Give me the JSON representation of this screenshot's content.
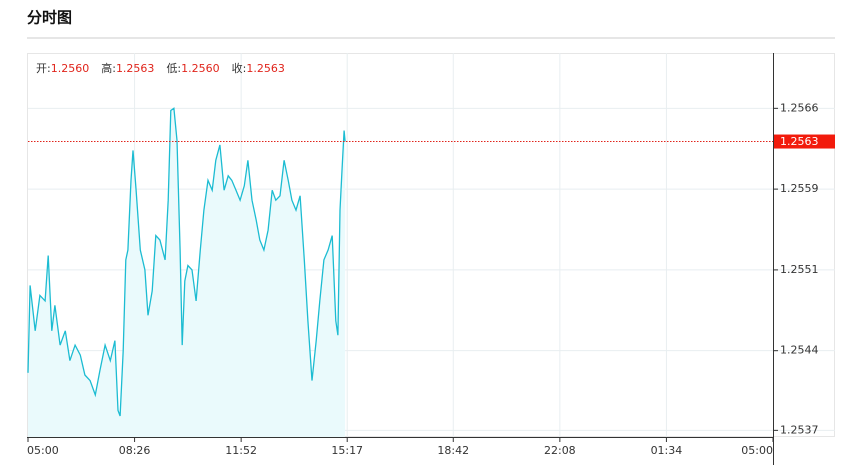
{
  "header": {
    "title": "分时图"
  },
  "chart_data": {
    "type": "line",
    "info": [
      {
        "label": "开:",
        "value": "1.2560"
      },
      {
        "label": "高:",
        "value": "1.2563"
      },
      {
        "label": "低:",
        "value": "1.2560"
      },
      {
        "label": "收:",
        "value": "1.2563"
      }
    ],
    "last_price": 1.2563,
    "xlim": [
      0,
      1440
    ],
    "xticks": [
      {
        "value": 0,
        "label": "05:00"
      },
      {
        "value": 206,
        "label": "08:26"
      },
      {
        "value": 412,
        "label": "11:52"
      },
      {
        "value": 617,
        "label": "15:17"
      },
      {
        "value": 822,
        "label": "18:42"
      },
      {
        "value": 1028,
        "label": "22:08"
      },
      {
        "value": 1234,
        "label": "01:34"
      },
      {
        "value": 1440,
        "label": "05:00"
      }
    ],
    "ylim": [
      1.25363,
      1.2571
    ],
    "yticks": [
      {
        "value": 1.25369,
        "label": "1.2537"
      },
      {
        "value": 1.25441,
        "label": "1.2544"
      },
      {
        "value": 1.25514,
        "label": "1.2551"
      },
      {
        "value": 1.25587,
        "label": "1.2559"
      },
      {
        "value": 1.2566,
        "label": "1.2566"
      }
    ],
    "grid": true,
    "color": "#1cbcd2",
    "x": [
      0,
      4,
      14,
      23,
      33,
      39,
      46,
      52,
      62,
      72,
      81,
      91,
      101,
      110,
      120,
      130,
      139,
      149,
      159,
      168,
      174,
      178,
      184,
      189,
      193,
      199,
      203,
      209,
      217,
      226,
      232,
      240,
      247,
      255,
      265,
      271,
      276,
      282,
      288,
      294,
      298,
      303,
      309,
      317,
      325,
      333,
      340,
      348,
      356,
      363,
      371,
      379,
      387,
      394,
      402,
      410,
      418,
      425,
      433,
      441,
      448,
      456,
      464,
      472,
      479,
      487,
      495,
      503,
      510,
      518,
      526,
      534,
      541,
      549,
      557,
      564,
      572,
      580,
      588,
      595,
      599,
      603,
      607,
      611,
      613
    ],
    "values": [
      1.25421,
      1.255,
      1.25459,
      1.25491,
      1.25486,
      1.25527,
      1.25459,
      1.25482,
      1.25446,
      1.25459,
      1.25432,
      1.25446,
      1.25437,
      1.25419,
      1.25414,
      1.25401,
      1.25423,
      1.25446,
      1.25432,
      1.2545,
      1.25387,
      1.25382,
      1.25441,
      1.25523,
      1.25532,
      1.25595,
      1.25622,
      1.25586,
      1.25532,
      1.25514,
      1.25473,
      1.25495,
      1.25545,
      1.25541,
      1.25523,
      1.25577,
      1.25658,
      1.2566,
      1.25631,
      1.25532,
      1.25446,
      1.25504,
      1.25518,
      1.25514,
      1.25486,
      1.25532,
      1.25568,
      1.25595,
      1.25586,
      1.25613,
      1.25627,
      1.25586,
      1.25599,
      1.25595,
      1.25586,
      1.25577,
      1.2559,
      1.25613,
      1.25577,
      1.25559,
      1.25541,
      1.25532,
      1.2555,
      1.25586,
      1.25577,
      1.25581,
      1.25613,
      1.25595,
      1.25577,
      1.25568,
      1.25581,
      1.25523,
      1.25468,
      1.25414,
      1.2545,
      1.25486,
      1.25523,
      1.25532,
      1.25545,
      1.25468,
      1.25455,
      1.25568,
      1.25604,
      1.2564,
      1.2563
    ]
  }
}
